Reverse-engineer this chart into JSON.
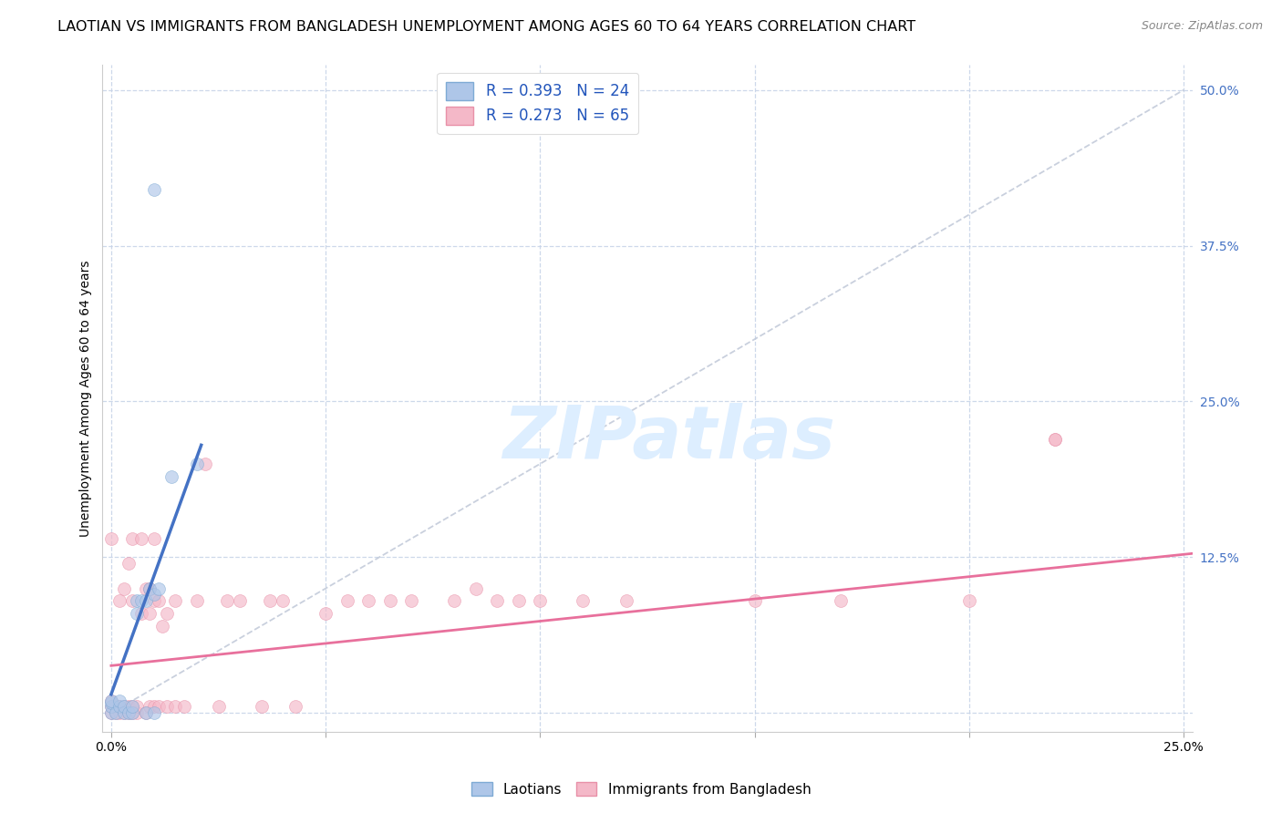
{
  "title": "LAOTIAN VS IMMIGRANTS FROM BANGLADESH UNEMPLOYMENT AMONG AGES 60 TO 64 YEARS CORRELATION CHART",
  "source": "Source: ZipAtlas.com",
  "ylabel": "Unemployment Among Ages 60 to 64 years",
  "y_ticks_right": [
    0.0,
    0.125,
    0.25,
    0.375,
    0.5
  ],
  "y_tick_labels_right": [
    "",
    "12.5%",
    "25.0%",
    "37.5%",
    "50.0%"
  ],
  "xlim": [
    -0.002,
    0.252
  ],
  "ylim": [
    -0.015,
    0.52
  ],
  "laotian_color": "#aec6e8",
  "laotian_edge_color": "#7eaad4",
  "laotian_line_color": "#4472c4",
  "bangladesh_color": "#f4b8c8",
  "bangladesh_edge_color": "#e890a8",
  "bangladesh_line_color": "#e8709c",
  "diagonal_color": "#c0c8d8",
  "background_color": "#ffffff",
  "grid_color": "#c8d4e8",
  "laotian_x": [
    0.0,
    0.0,
    0.0,
    0.0,
    0.001,
    0.002,
    0.002,
    0.003,
    0.003,
    0.004,
    0.005,
    0.005,
    0.006,
    0.006,
    0.007,
    0.008,
    0.008,
    0.009,
    0.01,
    0.01,
    0.011,
    0.014,
    0.02,
    0.01
  ],
  "laotian_y": [
    0.0,
    0.005,
    0.008,
    0.01,
    0.0,
    0.005,
    0.01,
    0.0,
    0.005,
    0.0,
    0.0,
    0.005,
    0.08,
    0.09,
    0.09,
    0.0,
    0.09,
    0.1,
    0.0,
    0.095,
    0.1,
    0.19,
    0.2,
    0.42
  ],
  "bangladesh_x": [
    0.0,
    0.0,
    0.0,
    0.0,
    0.001,
    0.001,
    0.002,
    0.002,
    0.002,
    0.003,
    0.003,
    0.003,
    0.004,
    0.004,
    0.004,
    0.005,
    0.005,
    0.005,
    0.005,
    0.006,
    0.006,
    0.007,
    0.007,
    0.008,
    0.008,
    0.009,
    0.009,
    0.009,
    0.01,
    0.01,
    0.01,
    0.011,
    0.011,
    0.012,
    0.013,
    0.013,
    0.015,
    0.015,
    0.017,
    0.02,
    0.022,
    0.025,
    0.027,
    0.03,
    0.035,
    0.037,
    0.04,
    0.043,
    0.05,
    0.055,
    0.06,
    0.065,
    0.07,
    0.08,
    0.085,
    0.09,
    0.095,
    0.1,
    0.11,
    0.12,
    0.15,
    0.17,
    0.2,
    0.22,
    0.22
  ],
  "bangladesh_y": [
    0.0,
    0.005,
    0.01,
    0.14,
    0.0,
    0.005,
    0.0,
    0.005,
    0.09,
    0.0,
    0.005,
    0.1,
    0.0,
    0.005,
    0.12,
    0.0,
    0.005,
    0.09,
    0.14,
    0.0,
    0.005,
    0.08,
    0.14,
    0.0,
    0.1,
    0.005,
    0.08,
    0.1,
    0.005,
    0.09,
    0.14,
    0.005,
    0.09,
    0.07,
    0.005,
    0.08,
    0.005,
    0.09,
    0.005,
    0.09,
    0.2,
    0.005,
    0.09,
    0.09,
    0.005,
    0.09,
    0.09,
    0.005,
    0.08,
    0.09,
    0.09,
    0.09,
    0.09,
    0.09,
    0.1,
    0.09,
    0.09,
    0.09,
    0.09,
    0.09,
    0.09,
    0.09,
    0.09,
    0.22,
    0.22
  ],
  "laotian_trend_x": [
    0.0,
    0.021
  ],
  "laotian_trend_y": [
    0.015,
    0.215
  ],
  "bangladesh_trend_x": [
    0.0,
    0.252
  ],
  "bangladesh_trend_y": [
    0.038,
    0.128
  ],
  "marker_size": 100,
  "marker_alpha": 0.65,
  "title_fontsize": 11.5,
  "source_fontsize": 9,
  "axis_label_fontsize": 10,
  "tick_fontsize": 10,
  "legend_fontsize": 12,
  "watermark_text": "ZIPatlas",
  "watermark_color": "#ddeeff",
  "legend1_label": "R = 0.393   N = 24",
  "legend2_label": "R = 0.273   N = 65",
  "bottom_legend1": "Laotians",
  "bottom_legend2": "Immigrants from Bangladesh"
}
